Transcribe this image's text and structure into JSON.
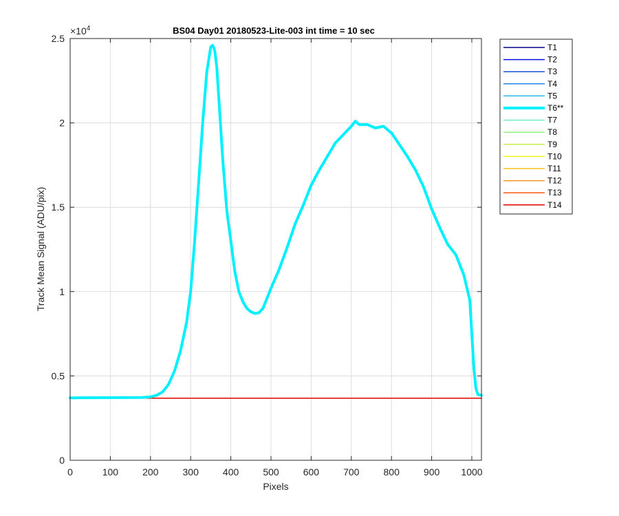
{
  "chart_data": {
    "type": "line",
    "title": "BS04 Day01 20180523-Lite-003 int time = 10 sec",
    "xlabel": "Pixels",
    "ylabel": "Track Mean Signal (ADU/pix)",
    "xlim": [
      0,
      1024
    ],
    "ylim": [
      0,
      25000
    ],
    "x_ticks": [
      0,
      100,
      200,
      300,
      400,
      500,
      600,
      700,
      800,
      900,
      1000
    ],
    "x_tick_labels": [
      "0",
      "100",
      "200",
      "300",
      "400",
      "500",
      "600",
      "700",
      "800",
      "900",
      "1000"
    ],
    "y_ticks": [
      0,
      5000,
      10000,
      15000,
      20000,
      25000
    ],
    "y_tick_labels": [
      "0",
      "0.5",
      "1",
      "1.5",
      "2",
      "2.5"
    ],
    "y_exponent_label": "×10",
    "y_exponent_power": "4",
    "grid": true,
    "legend_position": "outside-right",
    "series": [
      {
        "name": "T1",
        "color": "#00008f",
        "width": 1.5,
        "x": [
          0,
          1024
        ],
        "y": [
          3680,
          3680
        ]
      },
      {
        "name": "T2",
        "color": "#0010e0",
        "width": 1.5,
        "x": [
          0,
          1024
        ],
        "y": [
          3680,
          3680
        ]
      },
      {
        "name": "T3",
        "color": "#1a4fd8",
        "width": 1.5,
        "x": [
          0,
          1024
        ],
        "y": [
          3680,
          3680
        ]
      },
      {
        "name": "T4",
        "color": "#1f86e6",
        "width": 1.5,
        "x": [
          0,
          1024
        ],
        "y": [
          3680,
          3680
        ]
      },
      {
        "name": "T5",
        "color": "#26b4ec",
        "width": 1.5,
        "x": [
          0,
          1024
        ],
        "y": [
          3680,
          3680
        ]
      },
      {
        "name": "T6**",
        "color": "#00f0ff",
        "width": 4,
        "x": [
          0,
          180,
          200,
          215,
          230,
          245,
          260,
          275,
          290,
          300,
          310,
          320,
          330,
          340,
          350,
          355,
          360,
          365,
          370,
          380,
          390,
          400,
          410,
          420,
          430,
          440,
          450,
          460,
          470,
          480,
          490,
          500,
          520,
          540,
          560,
          580,
          600,
          620,
          640,
          660,
          680,
          700,
          710,
          720,
          740,
          760,
          780,
          800,
          820,
          840,
          860,
          880,
          900,
          920,
          940,
          960,
          980,
          995,
          1000,
          1005,
          1010,
          1015,
          1024
        ],
        "y": [
          3700,
          3720,
          3760,
          3850,
          4050,
          4500,
          5300,
          6500,
          8200,
          10000,
          13000,
          16500,
          20000,
          23000,
          24500,
          24600,
          24300,
          23300,
          21500,
          17800,
          14800,
          13000,
          11200,
          10000,
          9400,
          9000,
          8800,
          8700,
          8750,
          9000,
          9600,
          10200,
          11300,
          12600,
          14000,
          15100,
          16300,
          17200,
          18000,
          18800,
          19300,
          19800,
          20100,
          19900,
          19900,
          19700,
          19800,
          19400,
          18700,
          18000,
          17200,
          16200,
          14900,
          13800,
          12800,
          12200,
          11000,
          9500,
          7500,
          5500,
          4300,
          3900,
          3850
        ]
      },
      {
        "name": "T7",
        "color": "#6bf0c0",
        "width": 1.5,
        "x": [
          0,
          1024
        ],
        "y": [
          3680,
          3680
        ]
      },
      {
        "name": "T8",
        "color": "#8df07a",
        "width": 1.5,
        "x": [
          0,
          1024
        ],
        "y": [
          3680,
          3680
        ]
      },
      {
        "name": "T9",
        "color": "#c6f04a",
        "width": 1.5,
        "x": [
          0,
          1024
        ],
        "y": [
          3680,
          3680
        ]
      },
      {
        "name": "T10",
        "color": "#f5ef1a",
        "width": 1.5,
        "x": [
          0,
          1024
        ],
        "y": [
          3680,
          3680
        ]
      },
      {
        "name": "T11",
        "color": "#f5c020",
        "width": 1.5,
        "x": [
          0,
          1024
        ],
        "y": [
          3680,
          3680
        ]
      },
      {
        "name": "T12",
        "color": "#f59420",
        "width": 1.5,
        "x": [
          0,
          1024
        ],
        "y": [
          3680,
          3680
        ]
      },
      {
        "name": "T13",
        "color": "#f55a10",
        "width": 1.5,
        "x": [
          0,
          1024
        ],
        "y": [
          3680,
          3680
        ]
      },
      {
        "name": "T14",
        "color": "#e00000",
        "width": 1.5,
        "x": [
          0,
          1024
        ],
        "y": [
          3680,
          3680
        ]
      }
    ]
  }
}
